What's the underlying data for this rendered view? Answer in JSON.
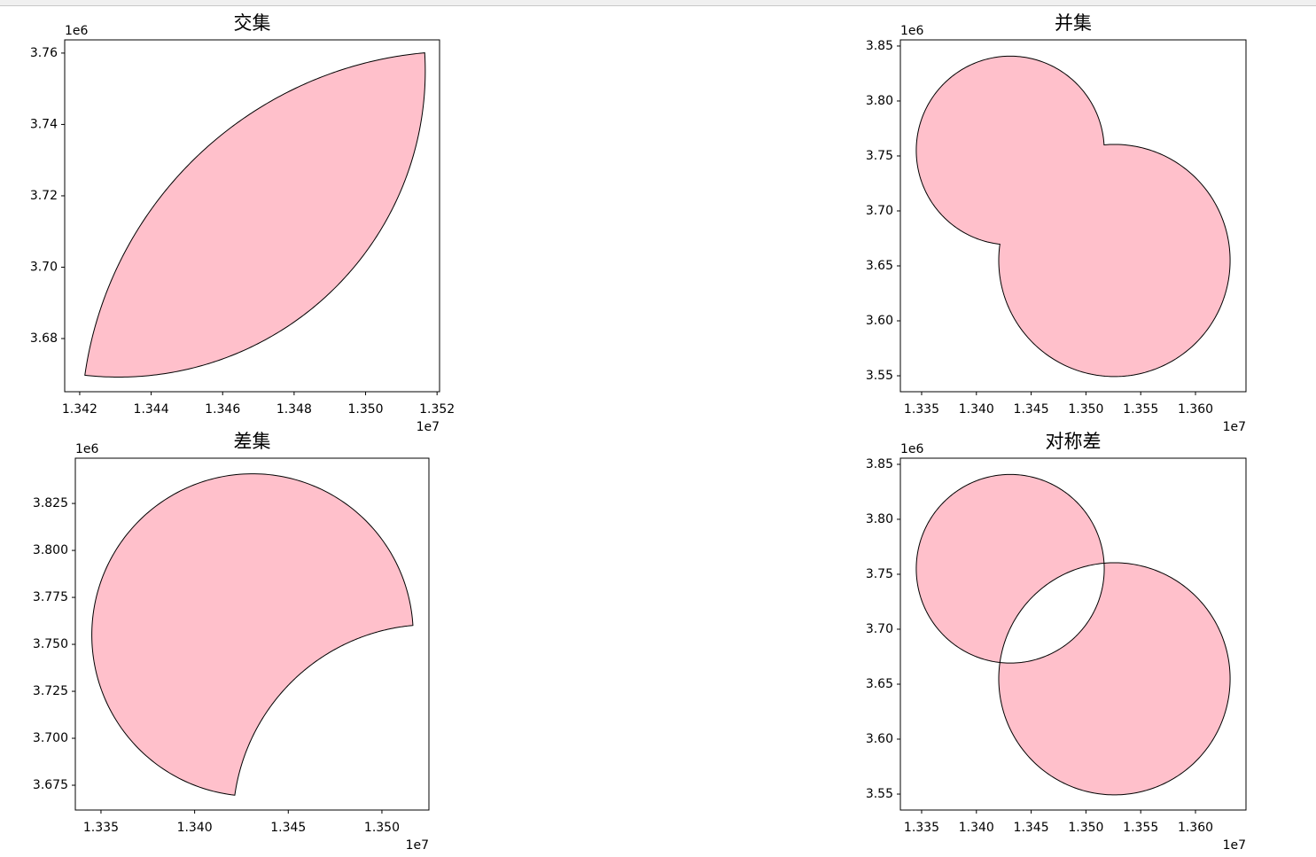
{
  "chart_data": [
    {
      "type": "shape",
      "title": "交集",
      "operation": "intersection",
      "color": "#ffc0cb",
      "edgecolor": "#000000",
      "circles": [
        {
          "x": 13430900,
          "y": 3755000,
          "r": 85800
        },
        {
          "x": 13526000,
          "y": 3654900,
          "r": 105600
        }
      ],
      "xlim": [
        13415800,
        13520700
      ],
      "ylim": [
        3665100,
        3763700
      ],
      "xticks": [
        {
          "value": 13420000,
          "label": "1.342"
        },
        {
          "value": 13440000,
          "label": "1.344"
        },
        {
          "value": 13460000,
          "label": "1.346"
        },
        {
          "value": 13480000,
          "label": "1.348"
        },
        {
          "value": 13500000,
          "label": "1.350"
        },
        {
          "value": 13520000,
          "label": "1.352"
        }
      ],
      "yticks": [
        {
          "value": 3680000,
          "label": "3.68"
        },
        {
          "value": 3700000,
          "label": "3.70"
        },
        {
          "value": 3720000,
          "label": "3.72"
        },
        {
          "value": 3740000,
          "label": "3.74"
        },
        {
          "value": 3760000,
          "label": "3.76"
        }
      ],
      "x_offset": "1e7",
      "y_offset": "1e6"
    },
    {
      "type": "shape",
      "title": "并集",
      "operation": "union",
      "color": "#ffc0cb",
      "edgecolor": "#000000",
      "circles": [
        {
          "x": 13430900,
          "y": 3755000,
          "r": 85800
        },
        {
          "x": 13526000,
          "y": 3654900,
          "r": 105600
        }
      ],
      "xlim": [
        13330600,
        13646100
      ],
      "ylim": [
        3535500,
        3855600
      ],
      "xticks": [
        {
          "value": 13350000,
          "label": "1.335"
        },
        {
          "value": 13400000,
          "label": "1.340"
        },
        {
          "value": 13450000,
          "label": "1.345"
        },
        {
          "value": 13500000,
          "label": "1.350"
        },
        {
          "value": 13550000,
          "label": "1.355"
        },
        {
          "value": 13600000,
          "label": "1.360"
        }
      ],
      "yticks": [
        {
          "value": 3550000,
          "label": "3.55"
        },
        {
          "value": 3600000,
          "label": "3.60"
        },
        {
          "value": 3650000,
          "label": "3.65"
        },
        {
          "value": 3700000,
          "label": "3.70"
        },
        {
          "value": 3750000,
          "label": "3.75"
        },
        {
          "value": 3800000,
          "label": "3.80"
        },
        {
          "value": 3850000,
          "label": "3.85"
        }
      ],
      "x_offset": "1e7",
      "y_offset": "1e6"
    },
    {
      "type": "shape",
      "title": "差集",
      "operation": "difference",
      "color": "#ffc0cb",
      "edgecolor": "#000000",
      "circles": [
        {
          "x": 13430900,
          "y": 3755000,
          "r": 85800
        },
        {
          "x": 13526000,
          "y": 3654900,
          "r": 105600
        }
      ],
      "xlim": [
        13336300,
        13525100
      ],
      "ylim": [
        3661800,
        3849100
      ],
      "xticks": [
        {
          "value": 13350000,
          "label": "1.335"
        },
        {
          "value": 13400000,
          "label": "1.340"
        },
        {
          "value": 13450000,
          "label": "1.345"
        },
        {
          "value": 13500000,
          "label": "1.350"
        }
      ],
      "yticks": [
        {
          "value": 3675000,
          "label": "3.675"
        },
        {
          "value": 3700000,
          "label": "3.700"
        },
        {
          "value": 3725000,
          "label": "3.725"
        },
        {
          "value": 3750000,
          "label": "3.750"
        },
        {
          "value": 3775000,
          "label": "3.775"
        },
        {
          "value": 3800000,
          "label": "3.800"
        },
        {
          "value": 3825000,
          "label": "3.825"
        }
      ],
      "x_offset": "1e7",
      "y_offset": "1e6"
    },
    {
      "type": "shape",
      "title": "对称差",
      "operation": "symmetric_difference",
      "color": "#ffc0cb",
      "edgecolor": "#000000",
      "circles": [
        {
          "x": 13430900,
          "y": 3755000,
          "r": 85800
        },
        {
          "x": 13526000,
          "y": 3654900,
          "r": 105600
        }
      ],
      "xlim": [
        13330600,
        13646100
      ],
      "ylim": [
        3535500,
        3855600
      ],
      "xticks": [
        {
          "value": 13350000,
          "label": "1.335"
        },
        {
          "value": 13400000,
          "label": "1.340"
        },
        {
          "value": 13450000,
          "label": "1.345"
        },
        {
          "value": 13500000,
          "label": "1.350"
        },
        {
          "value": 13550000,
          "label": "1.355"
        },
        {
          "value": 13600000,
          "label": "1.360"
        }
      ],
      "yticks": [
        {
          "value": 3550000,
          "label": "3.55"
        },
        {
          "value": 3600000,
          "label": "3.60"
        },
        {
          "value": 3650000,
          "label": "3.65"
        },
        {
          "value": 3700000,
          "label": "3.70"
        },
        {
          "value": 3750000,
          "label": "3.75"
        },
        {
          "value": 3800000,
          "label": "3.80"
        },
        {
          "value": 3850000,
          "label": "3.85"
        }
      ],
      "x_offset": "1e7",
      "y_offset": "1e6"
    }
  ]
}
